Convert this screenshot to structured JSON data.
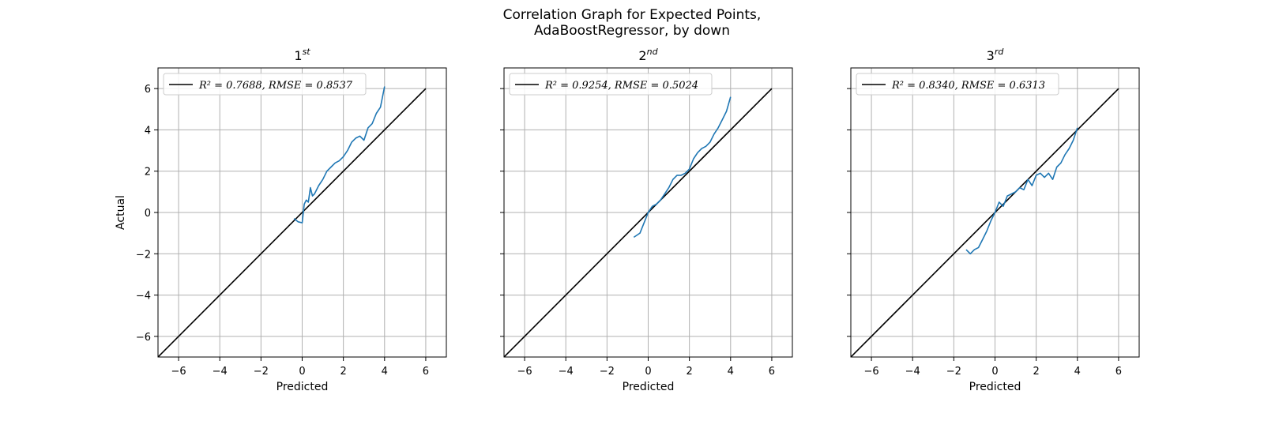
{
  "figure": {
    "title_line1": "Correlation Graph for Expected Points,",
    "title_line2": "AdaBoostRegressor, by down"
  },
  "colors": {
    "identity": "#000000",
    "series": "#1f77b4",
    "grid": "#b0b0b0"
  },
  "chart_data": [
    {
      "type": "line",
      "title": "1",
      "title_sup": "st",
      "xlabel": "Predicted",
      "ylabel": "Actual",
      "xlim": [
        -7,
        7
      ],
      "ylim": [
        -7,
        7
      ],
      "xticks": [
        -6,
        -4,
        -2,
        0,
        2,
        4,
        6
      ],
      "yticks": [
        -6,
        -4,
        -2,
        0,
        2,
        4,
        6
      ],
      "grid": true,
      "legend_position": "upper-left",
      "legend_label": "R² = 0.7688, RMSE = 0.8537",
      "identity": {
        "x": [
          -7,
          6
        ],
        "y": [
          -7,
          6
        ]
      },
      "series": [
        {
          "x": [
            -0.4,
            -0.2,
            0.0,
            0.1,
            0.2,
            0.3,
            0.4,
            0.5,
            0.6,
            0.8,
            1.0,
            1.2,
            1.4,
            1.6,
            1.8,
            2.0,
            2.2,
            2.4,
            2.6,
            2.8,
            3.0,
            3.2,
            3.4,
            3.6,
            3.8,
            4.0
          ],
          "y": [
            -0.3,
            -0.45,
            -0.5,
            0.4,
            0.6,
            0.5,
            1.2,
            0.8,
            0.9,
            1.3,
            1.6,
            2.0,
            2.2,
            2.4,
            2.5,
            2.7,
            3.0,
            3.4,
            3.6,
            3.7,
            3.5,
            4.1,
            4.3,
            4.8,
            5.1,
            6.1
          ]
        }
      ]
    },
    {
      "type": "line",
      "title": "2",
      "title_sup": "nd",
      "xlabel": "Predicted",
      "ylabel": "",
      "xlim": [
        -7,
        7
      ],
      "ylim": [
        -7,
        7
      ],
      "xticks": [
        -6,
        -4,
        -2,
        0,
        2,
        4,
        6
      ],
      "yticks": [
        -6,
        -4,
        -2,
        0,
        2,
        4,
        6
      ],
      "grid": true,
      "legend_position": "upper-left",
      "legend_label": "R² = 0.9254, RMSE = 0.5024",
      "identity": {
        "x": [
          -7,
          6
        ],
        "y": [
          -7,
          6
        ]
      },
      "series": [
        {
          "x": [
            -0.7,
            -0.4,
            -0.2,
            0.0,
            0.2,
            0.4,
            0.6,
            0.8,
            1.0,
            1.2,
            1.4,
            1.6,
            1.8,
            2.0,
            2.2,
            2.4,
            2.6,
            2.8,
            3.0,
            3.2,
            3.4,
            3.6,
            3.8,
            4.0
          ],
          "y": [
            -1.2,
            -1.0,
            -0.5,
            0.0,
            0.3,
            0.4,
            0.6,
            0.9,
            1.2,
            1.6,
            1.8,
            1.8,
            1.9,
            2.1,
            2.6,
            2.9,
            3.1,
            3.2,
            3.4,
            3.8,
            4.1,
            4.5,
            4.9,
            5.6
          ]
        }
      ]
    },
    {
      "type": "line",
      "title": "3",
      "title_sup": "rd",
      "xlabel": "Predicted",
      "ylabel": "",
      "xlim": [
        -7,
        7
      ],
      "ylim": [
        -7,
        7
      ],
      "xticks": [
        -6,
        -4,
        -2,
        0,
        2,
        4,
        6
      ],
      "yticks": [
        -6,
        -4,
        -2,
        0,
        2,
        4,
        6
      ],
      "grid": true,
      "legend_position": "upper-left",
      "legend_label": "R² = 0.8340, RMSE = 0.6313",
      "identity": {
        "x": [
          -7,
          6
        ],
        "y": [
          -7,
          6
        ]
      },
      "series": [
        {
          "x": [
            -1.4,
            -1.2,
            -1.0,
            -0.8,
            -0.6,
            -0.4,
            -0.2,
            0.0,
            0.2,
            0.4,
            0.6,
            0.8,
            1.0,
            1.2,
            1.4,
            1.6,
            1.8,
            2.0,
            2.2,
            2.4,
            2.6,
            2.8,
            3.0,
            3.2,
            3.4,
            3.6,
            3.8,
            4.0
          ],
          "y": [
            -1.8,
            -2.0,
            -1.8,
            -1.7,
            -1.3,
            -0.9,
            -0.4,
            0.0,
            0.5,
            0.3,
            0.8,
            0.9,
            1.0,
            1.2,
            1.1,
            1.6,
            1.3,
            1.8,
            1.9,
            1.7,
            1.9,
            1.6,
            2.2,
            2.4,
            2.8,
            3.1,
            3.5,
            4.1
          ]
        }
      ]
    }
  ]
}
